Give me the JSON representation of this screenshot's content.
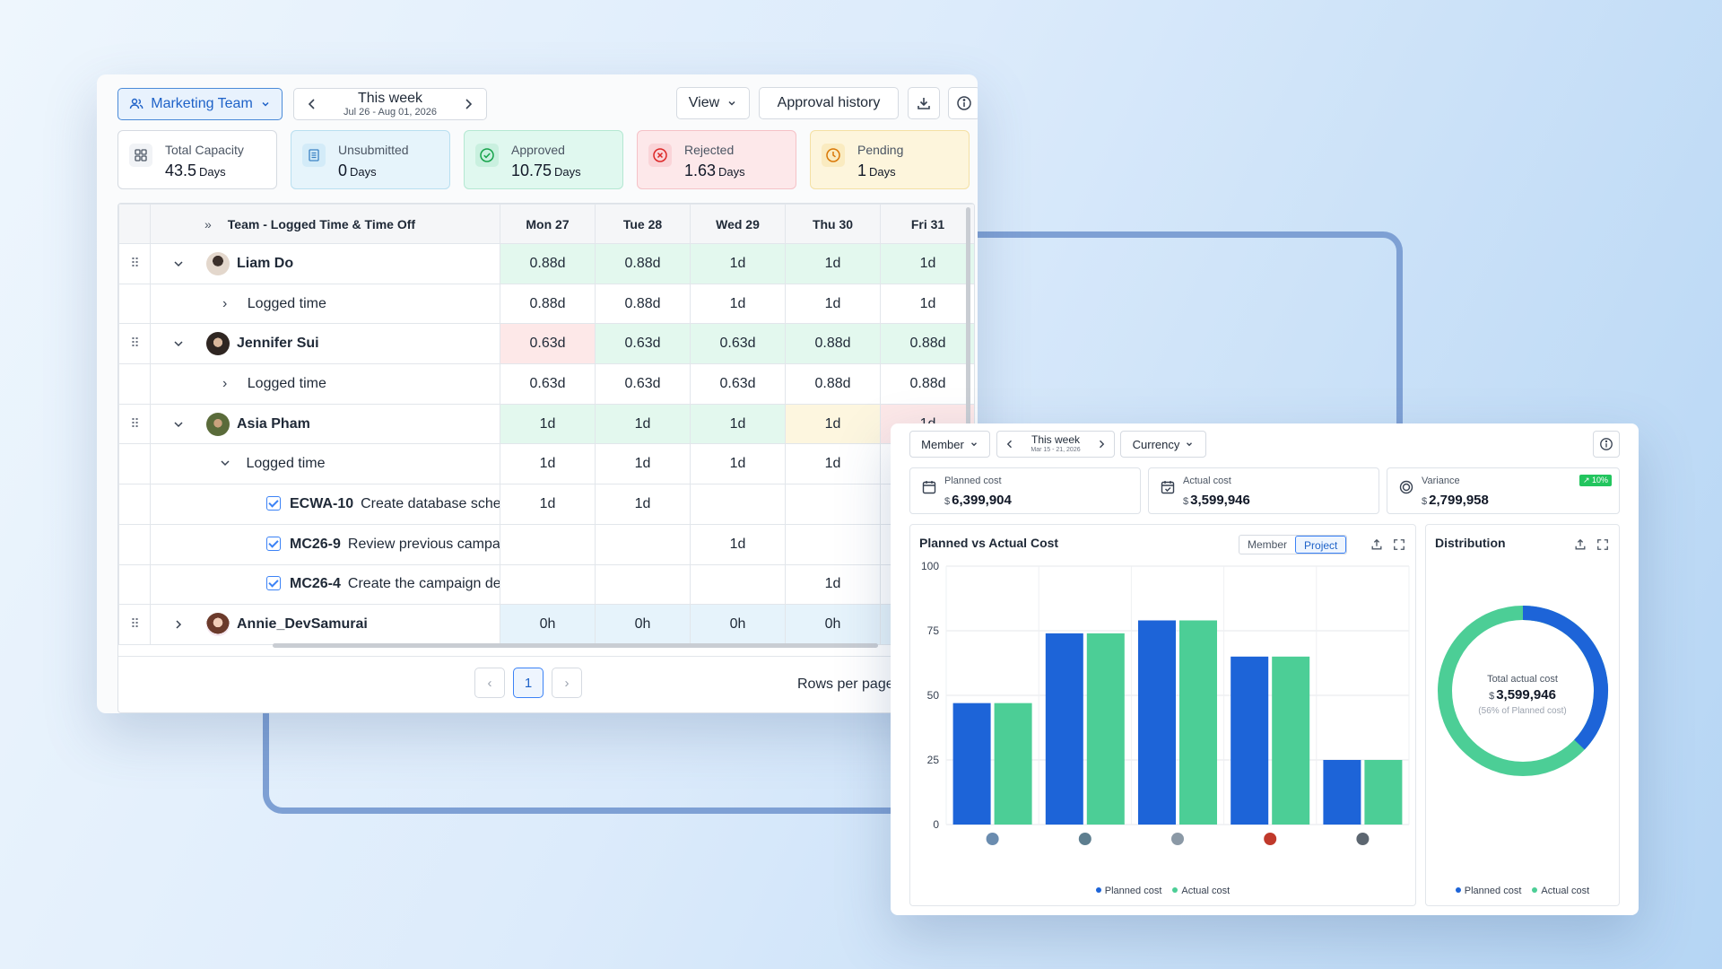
{
  "timesheet": {
    "team_label": "Marketing Team",
    "week_title": "This week",
    "week_range": "Jul 26 - Aug 01, 2026",
    "view_label": "View",
    "approval_label": "Approval history",
    "stats": [
      {
        "label": "Total Capacity",
        "value": "43.5",
        "unit": "Days"
      },
      {
        "label": "Unsubmitted",
        "value": "0",
        "unit": "Days"
      },
      {
        "label": "Approved",
        "value": "10.75",
        "unit": "Days"
      },
      {
        "label": "Rejected",
        "value": "1.63",
        "unit": "Days"
      },
      {
        "label": "Pending",
        "value": "1",
        "unit": "Days"
      }
    ],
    "team_header": "Team - Logged Time & Time Off",
    "days": [
      "Mon 27",
      "Tue 28",
      "Wed 29",
      "Thu 30",
      "Fri 31"
    ],
    "rows": {
      "liam": {
        "name": "Liam Do",
        "cells": [
          "0.88d",
          "0.88d",
          "1d",
          "1d",
          "1d"
        ]
      },
      "liam_logged": {
        "label": "Logged time",
        "cells": [
          "0.88d",
          "0.88d",
          "1d",
          "1d",
          "1d"
        ]
      },
      "jennifer": {
        "name": "Jennifer Sui",
        "cells": [
          "0.63d",
          "0.63d",
          "0.63d",
          "0.88d",
          "0.88d"
        ]
      },
      "jennifer_logged": {
        "label": "Logged time",
        "cells": [
          "0.63d",
          "0.63d",
          "0.63d",
          "0.88d",
          "0.88d"
        ]
      },
      "asia": {
        "name": "Asia Pham",
        "cells": [
          "1d",
          "1d",
          "1d",
          "1d",
          "1d"
        ]
      },
      "asia_logged": {
        "label": "Logged time",
        "cells": [
          "1d",
          "1d",
          "1d",
          "1d",
          ""
        ]
      },
      "task1": {
        "code": "ECWA-10",
        "title": "Create database schema",
        "cells": [
          "1d",
          "1d",
          "",
          "",
          ""
        ]
      },
      "task2": {
        "code": "MC26-9",
        "title": "Review previous campaign",
        "cells": [
          "",
          "",
          "1d",
          "",
          ""
        ]
      },
      "task3": {
        "code": "MC26-4",
        "title": "Create the campaign delive",
        "cells": [
          "",
          "",
          "",
          "1d",
          ""
        ]
      },
      "annie": {
        "name": "Annie_DevSamurai",
        "cells": [
          "0h",
          "0h",
          "0h",
          "0h",
          ""
        ]
      }
    },
    "page": "1",
    "rows_per_page": "Rows per page"
  },
  "cost": {
    "member_label": "Member",
    "week_title": "This week",
    "week_range": "Mar 15 - 21, 2026",
    "currency_label": "Currency",
    "cards": [
      {
        "label": "Planned cost",
        "currency": "$",
        "value": "6,399,904"
      },
      {
        "label": "Actual cost",
        "currency": "$",
        "value": "3,599,946"
      },
      {
        "label": "Variance",
        "currency": "$",
        "value": "2,799,958",
        "badge": "↗ 10%"
      }
    ],
    "chart_title": "Planned vs Actual Cost",
    "toggle": [
      "Member",
      "Project"
    ],
    "distribution_title": "Distribution",
    "donut_caption": "Total actual cost",
    "donut_currency": "$",
    "donut_value": "3,599,946",
    "donut_note": "(56% of Planned cost)",
    "legend": [
      "Planned cost",
      "Actual cost"
    ],
    "colors": {
      "planned": "#1d64d8",
      "actual": "#4cce96"
    }
  },
  "chart_data": {
    "type": "bar",
    "categories": [
      "",
      "",
      "",
      "",
      ""
    ],
    "series": [
      {
        "name": "Planned cost",
        "values": [
          47,
          74,
          79,
          65,
          25
        ]
      },
      {
        "name": "Actual cost",
        "values": [
          47,
          74,
          79,
          65,
          25
        ]
      }
    ],
    "ylim": [
      0,
      100
    ],
    "yticks": [
      0,
      25,
      50,
      75,
      100
    ],
    "grid": true,
    "legend": "bottom"
  }
}
